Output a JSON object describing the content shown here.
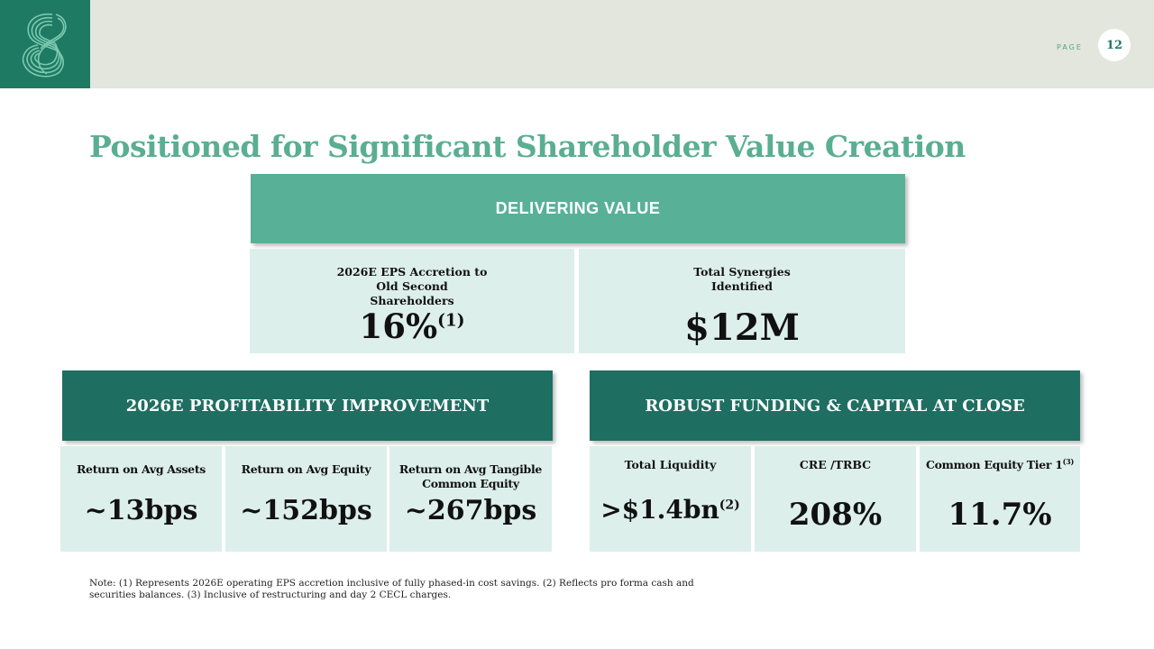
{
  "header": {
    "page_label": "PAGE",
    "page_number": "12",
    "brand_color": "#1e7a63",
    "logo_icon": "interlocking-loops-logo"
  },
  "title": "Positioned for Significant Shareholder Value Creation",
  "delivering": {
    "header": "DELIVERING VALUE",
    "items": [
      {
        "label": "2026E EPS Accretion to Old Second Shareholders",
        "value": "16%",
        "footnote": "(1)"
      },
      {
        "label": "Total Synergies Identified",
        "value": "$12M"
      }
    ]
  },
  "profitability": {
    "header": "2026E PROFITABILITY IMPROVEMENT",
    "items": [
      {
        "label": "Return on Avg Assets",
        "value": "~13bps"
      },
      {
        "label": "Return on Avg Equity",
        "value": "~152bps"
      },
      {
        "label": "Return on Avg Tangible Common Equity",
        "value": "~267bps"
      }
    ]
  },
  "funding": {
    "header": "ROBUST FUNDING & CAPITAL AT CLOSE",
    "items": [
      {
        "label": "Total Liquidity",
        "value": ">$1.4bn",
        "footnote": "(2)"
      },
      {
        "label": "CRE /TRBC",
        "value": "208%"
      },
      {
        "label": "Common Equity Tier 1",
        "label_footnote": "(3)",
        "value": "11.7%"
      }
    ]
  },
  "note": "Note: (1) Represents 2026E operating EPS accretion inclusive of fully phased-in cost savings. (2) Reflects pro forma cash and securities balances. (3) Inclusive of restructuring and day 2 CECL charges."
}
